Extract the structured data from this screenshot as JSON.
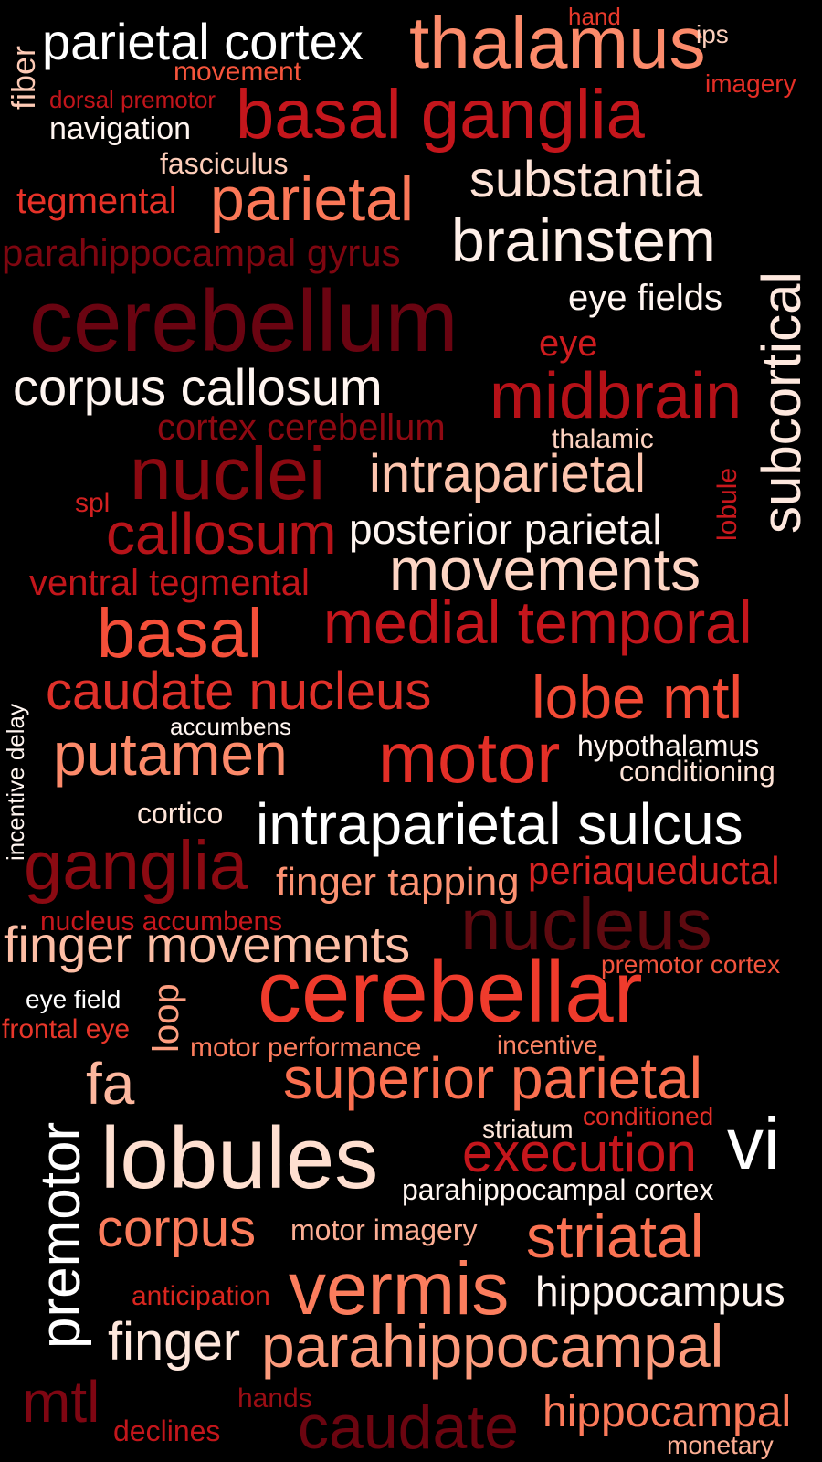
{
  "words": [
    {
      "text": "parietal cortex",
      "color": "#ffffff"
    },
    {
      "text": "thalamus",
      "color": "#fc8b6b"
    },
    {
      "text": "hand",
      "color": "#e83a2c"
    },
    {
      "text": "ips",
      "color": "#fdd0bd"
    },
    {
      "text": "fiber",
      "color": "#fdcab5"
    },
    {
      "text": "movement",
      "color": "#f6553c"
    },
    {
      "text": "imagery",
      "color": "#e42e26"
    },
    {
      "text": "dorsal premotor",
      "color": "#c1151b"
    },
    {
      "text": "basal ganglia",
      "color": "#c4161c"
    },
    {
      "text": "navigation",
      "color": "#fff5f0"
    },
    {
      "text": "fasciculus",
      "color": "#fdcdb9"
    },
    {
      "text": "substantia",
      "color": "#fee3d7"
    },
    {
      "text": "tegmental",
      "color": "#e53228"
    },
    {
      "text": "parietal",
      "color": "#fb7858"
    },
    {
      "text": "brainstem",
      "color": "#fff0e9"
    },
    {
      "text": "parahippocampal gyrus",
      "color": "#7e0610"
    },
    {
      "text": "subcortical",
      "color": "#fee8de"
    },
    {
      "text": "eye fields",
      "color": "#fff5f0"
    },
    {
      "text": "cerebellum",
      "color": "#6a0411"
    },
    {
      "text": "eye",
      "color": "#cf1c1f"
    },
    {
      "text": "corpus callosum",
      "color": "#fff5f0"
    },
    {
      "text": "midbrain",
      "color": "#b51118"
    },
    {
      "text": "cortex cerebellum",
      "color": "#8e0912"
    },
    {
      "text": "thalamic",
      "color": "#fdd3c1"
    },
    {
      "text": "nuclei",
      "color": "#8b0911"
    },
    {
      "text": "intraparietal",
      "color": "#fdc5ae"
    },
    {
      "text": "lobule",
      "color": "#c9181d"
    },
    {
      "text": "spl",
      "color": "#d32020"
    },
    {
      "text": "callosum",
      "color": "#b61319"
    },
    {
      "text": "posterior parietal",
      "color": "#fff5f0"
    },
    {
      "text": "ventral tegmental",
      "color": "#c3161b"
    },
    {
      "text": "movements",
      "color": "#fdd5c4"
    },
    {
      "text": "basal",
      "color": "#f44f39"
    },
    {
      "text": "medial temporal",
      "color": "#c4161c"
    },
    {
      "text": "caudate nucleus",
      "color": "#e0312a"
    },
    {
      "text": "lobe mtl",
      "color": "#f24a35"
    },
    {
      "text": "incentive delay",
      "color": "#fff5f0"
    },
    {
      "text": "accumbens",
      "color": "#fff5f0"
    },
    {
      "text": "putamen",
      "color": "#fc8a6a"
    },
    {
      "text": "motor",
      "color": "#e32f27"
    },
    {
      "text": "hypothalamus",
      "color": "#fff5f0"
    },
    {
      "text": "conditioning",
      "color": "#fee3d6"
    },
    {
      "text": "cortico",
      "color": "#fee5d9"
    },
    {
      "text": "intraparietal sulcus",
      "color": "#ffffff"
    },
    {
      "text": "ganglia",
      "color": "#8b0a12"
    },
    {
      "text": "finger tapping",
      "color": "#fc9272"
    },
    {
      "text": "periaqueductal",
      "color": "#d52221"
    },
    {
      "text": "nucleus accumbens",
      "color": "#c7171c"
    },
    {
      "text": "nucleus",
      "color": "#5e0a10"
    },
    {
      "text": "finger movements",
      "color": "#fdbea5"
    },
    {
      "text": "premotor cortex",
      "color": "#f2543d"
    },
    {
      "text": "loop",
      "color": "#fc9e80"
    },
    {
      "text": "eye field",
      "color": "#ffffff"
    },
    {
      "text": "cerebellar",
      "color": "#ef3b2c"
    },
    {
      "text": "frontal eye",
      "color": "#e8362a"
    },
    {
      "text": "motor performance",
      "color": "#fb7d5d"
    },
    {
      "text": "incentive",
      "color": "#fb8464"
    },
    {
      "text": "fa",
      "color": "#fdb79e"
    },
    {
      "text": "superior parietal",
      "color": "#fb7050"
    },
    {
      "text": "premotor",
      "color": "#ffffff"
    },
    {
      "text": "conditioned",
      "color": "#e22e27"
    },
    {
      "text": "striatum",
      "color": "#fee5d9"
    },
    {
      "text": "vi",
      "color": "#ffffff"
    },
    {
      "text": "lobules",
      "color": "#fedfd0"
    },
    {
      "text": "execution",
      "color": "#c4161c"
    },
    {
      "text": "parahippocampal cortex",
      "color": "#fff5f0"
    },
    {
      "text": "corpus",
      "color": "#fb7c5c"
    },
    {
      "text": "motor imagery",
      "color": "#fcae94"
    },
    {
      "text": "striatal",
      "color": "#fb7353"
    },
    {
      "text": "anticipation",
      "color": "#d9261f"
    },
    {
      "text": "vermis",
      "color": "#fb7d5d"
    },
    {
      "text": "hippocampus",
      "color": "#fff5f0"
    },
    {
      "text": "finger",
      "color": "#fee7dc"
    },
    {
      "text": "parahippocampal",
      "color": "#fc9b7c"
    },
    {
      "text": "mtl",
      "color": "#7f0612"
    },
    {
      "text": "hands",
      "color": "#9b0d14"
    },
    {
      "text": "declines",
      "color": "#c3161b"
    },
    {
      "text": "caudate",
      "color": "#6b0510"
    },
    {
      "text": "hippocampal",
      "color": "#fb7a5a"
    },
    {
      "text": "monetary",
      "color": "#fcae93"
    }
  ]
}
